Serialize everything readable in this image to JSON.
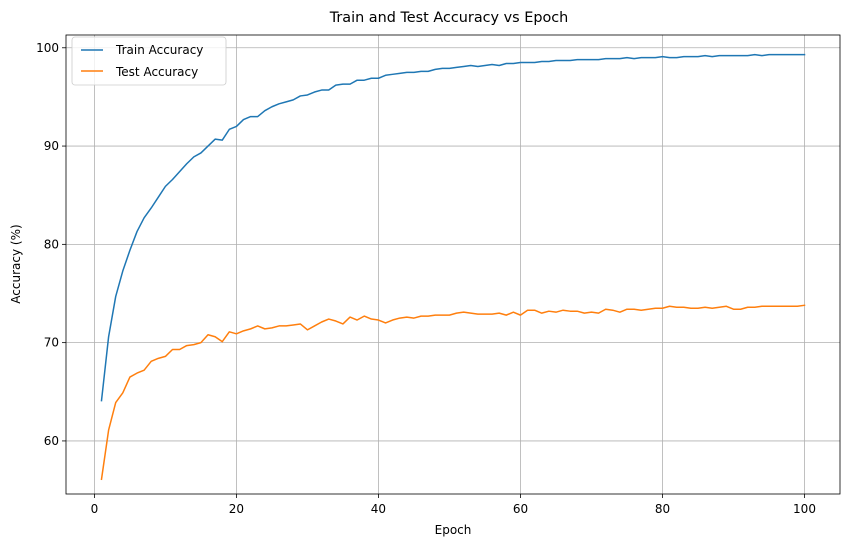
{
  "chart_data": {
    "type": "line",
    "title": "Train and Test Accuracy vs Epoch",
    "xlabel": "Epoch",
    "ylabel": "Accuracy (%)",
    "xlim": [
      -4,
      105
    ],
    "ylim": [
      54.6,
      101.3
    ],
    "xticks": [
      0,
      20,
      40,
      60,
      80,
      100
    ],
    "yticks": [
      60,
      70,
      80,
      90,
      100
    ],
    "grid": true,
    "legend_position": "top-left",
    "x": [
      1,
      2,
      3,
      4,
      5,
      6,
      7,
      8,
      9,
      10,
      11,
      12,
      13,
      14,
      15,
      16,
      17,
      18,
      19,
      20,
      21,
      22,
      23,
      24,
      25,
      26,
      27,
      28,
      29,
      30,
      31,
      32,
      33,
      34,
      35,
      36,
      37,
      38,
      39,
      40,
      41,
      42,
      43,
      44,
      45,
      46,
      47,
      48,
      49,
      50,
      51,
      52,
      53,
      54,
      55,
      56,
      57,
      58,
      59,
      60,
      61,
      62,
      63,
      64,
      65,
      66,
      67,
      68,
      69,
      70,
      71,
      72,
      73,
      74,
      75,
      76,
      77,
      78,
      79,
      80,
      81,
      82,
      83,
      84,
      85,
      86,
      87,
      88,
      89,
      90,
      91,
      92,
      93,
      94,
      95,
      96,
      97,
      98,
      99,
      100
    ],
    "series": [
      {
        "name": "Train Accuracy",
        "color": "#1f77b4",
        "values": [
          64.1,
          70.6,
          74.7,
          77.3,
          79.4,
          81.3,
          82.7,
          83.7,
          84.8,
          85.9,
          86.6,
          87.4,
          88.2,
          88.9,
          89.3,
          90.0,
          90.7,
          90.6,
          91.7,
          92.0,
          92.7,
          93.0,
          93.0,
          93.6,
          94.0,
          94.3,
          94.5,
          94.7,
          95.1,
          95.2,
          95.5,
          95.7,
          95.7,
          96.2,
          96.3,
          96.3,
          96.7,
          96.7,
          96.9,
          96.9,
          97.2,
          97.3,
          97.4,
          97.5,
          97.5,
          97.6,
          97.6,
          97.8,
          97.9,
          97.9,
          98.0,
          98.1,
          98.2,
          98.1,
          98.2,
          98.3,
          98.2,
          98.4,
          98.4,
          98.5,
          98.5,
          98.5,
          98.6,
          98.6,
          98.7,
          98.7,
          98.7,
          98.8,
          98.8,
          98.8,
          98.8,
          98.9,
          98.9,
          98.9,
          99.0,
          98.9,
          99.0,
          99.0,
          99.0,
          99.1,
          99.0,
          99.0,
          99.1,
          99.1,
          99.1,
          99.2,
          99.1,
          99.2,
          99.2,
          99.2,
          99.2,
          99.2,
          99.3,
          99.2,
          99.3,
          99.3,
          99.3,
          99.3,
          99.3,
          99.3
        ]
      },
      {
        "name": "Test Accuracy",
        "color": "#ff7f0e",
        "values": [
          56.1,
          61.1,
          63.9,
          64.9,
          66.5,
          66.9,
          67.2,
          68.1,
          68.4,
          68.6,
          69.3,
          69.3,
          69.7,
          69.8,
          70.0,
          70.8,
          70.6,
          70.1,
          71.1,
          70.9,
          71.2,
          71.4,
          71.7,
          71.4,
          71.5,
          71.7,
          71.7,
          71.8,
          71.9,
          71.3,
          71.7,
          72.1,
          72.4,
          72.2,
          71.9,
          72.6,
          72.3,
          72.7,
          72.4,
          72.3,
          72.0,
          72.3,
          72.5,
          72.6,
          72.5,
          72.7,
          72.7,
          72.8,
          72.8,
          72.8,
          73.0,
          73.1,
          73.0,
          72.9,
          72.9,
          72.9,
          73.0,
          72.8,
          73.1,
          72.8,
          73.3,
          73.3,
          73.0,
          73.2,
          73.1,
          73.3,
          73.2,
          73.2,
          73.0,
          73.1,
          73.0,
          73.4,
          73.3,
          73.1,
          73.4,
          73.4,
          73.3,
          73.4,
          73.5,
          73.5,
          73.7,
          73.6,
          73.6,
          73.5,
          73.5,
          73.6,
          73.5,
          73.6,
          73.7,
          73.4,
          73.4,
          73.6,
          73.6,
          73.7,
          73.7,
          73.7,
          73.7,
          73.7,
          73.7,
          73.8
        ]
      }
    ]
  }
}
